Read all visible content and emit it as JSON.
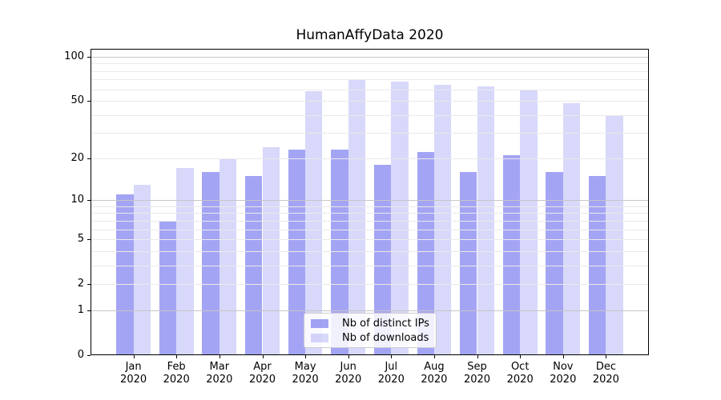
{
  "figure": {
    "background": "#ffffff"
  },
  "chart_data": {
    "type": "bar",
    "title": "HumanAffyData 2020",
    "categories": [
      "Jan 2020",
      "Feb 2020",
      "Mar 2020",
      "Apr 2020",
      "May 2020",
      "Jun 2020",
      "Jul 2020",
      "Aug 2020",
      "Sep 2020",
      "Oct 2020",
      "Nov 2020",
      "Dec 2020"
    ],
    "series": [
      {
        "name": "Nb of distinct IPs",
        "color": "rgba(90,90,235,0.55)",
        "values": [
          11,
          7,
          16,
          15,
          23,
          23,
          18,
          22,
          16,
          21,
          16,
          15
        ]
      },
      {
        "name": "Nb of downloads",
        "color": "rgba(90,90,235,0.24)",
        "values": [
          13,
          17,
          20,
          24,
          58,
          70,
          68,
          64,
          63,
          59,
          48,
          40
        ]
      }
    ],
    "xlabel": "",
    "ylabel": "",
    "y_axis": {
      "scale": "log1p",
      "tick_values": [
        0,
        1,
        2,
        5,
        10,
        20,
        50,
        100
      ],
      "major_grid_values": [
        1,
        10,
        100
      ],
      "minor_grid_values": [
        2,
        3,
        4,
        5,
        6,
        7,
        8,
        9,
        20,
        30,
        40,
        50,
        60,
        70,
        80,
        90
      ],
      "ylim": [
        0,
        113
      ]
    },
    "x_axis": {
      "xlim": [
        -1,
        12
      ]
    },
    "grid": true,
    "legend_position": "lower center",
    "colors": {
      "major_grid": "#c6c6c6",
      "minor_grid": "#eaeaea",
      "spine": "#000000",
      "text": "#000000"
    }
  }
}
